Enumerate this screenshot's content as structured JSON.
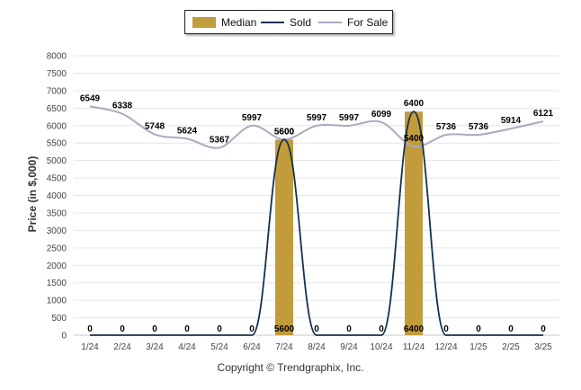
{
  "chart_data": {
    "type": "bar+line",
    "categories": [
      "1/24",
      "2/24",
      "3/24",
      "4/24",
      "5/24",
      "6/24",
      "7/24",
      "8/24",
      "9/24",
      "10/24",
      "11/24",
      "12/24",
      "1/25",
      "2/25",
      "3/25"
    ],
    "series": [
      {
        "name": "Median",
        "type": "bar",
        "color": "#c29b3b",
        "values": [
          0,
          0,
          0,
          0,
          0,
          0,
          5600,
          0,
          0,
          0,
          6400,
          0,
          0,
          0,
          0
        ]
      },
      {
        "name": "Sold",
        "type": "line",
        "color": "#16304f",
        "values": [
          0,
          0,
          0,
          0,
          0,
          0,
          5600,
          0,
          0,
          0,
          6400,
          0,
          0,
          0,
          0
        ]
      },
      {
        "name": "For Sale",
        "type": "line",
        "color": "#a7acc0",
        "values": [
          6549,
          6338,
          5748,
          5624,
          5367,
          5997,
          5600,
          5997,
          5997,
          6099,
          5400,
          5736,
          5736,
          5914,
          6121
        ]
      }
    ],
    "ylabel": "Price (in $,000)",
    "ylim": [
      0,
      8000
    ],
    "yticks": [
      0,
      500,
      1000,
      1500,
      2000,
      2500,
      3000,
      3500,
      4000,
      4500,
      5000,
      5500,
      6000,
      6500,
      7000,
      7500,
      8000
    ],
    "legend_position": "top-center",
    "grid": true
  },
  "footer": "Copyright © Trendgraphix, Inc."
}
